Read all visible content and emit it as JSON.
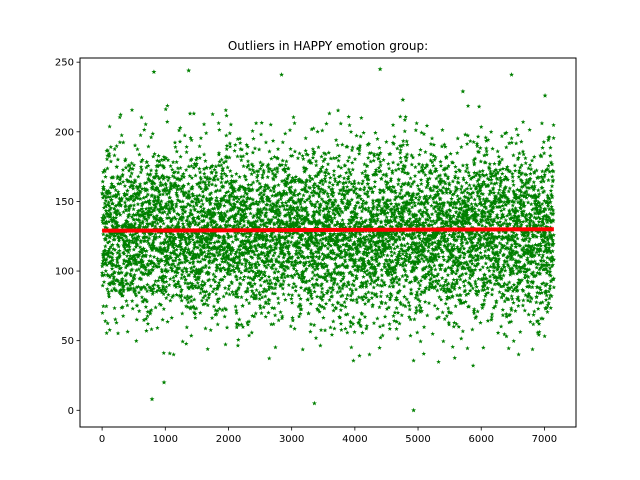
{
  "chart_data": {
    "type": "scatter",
    "title": "Outliers in HAPPY emotion group:",
    "xlabel": "",
    "ylabel": "",
    "xlim": [
      -350,
      7500
    ],
    "ylim": [
      -12,
      253
    ],
    "xticks": [
      0,
      1000,
      2000,
      3000,
      4000,
      5000,
      6000,
      7000
    ],
    "yticks": [
      0,
      50,
      100,
      150,
      200,
      250
    ],
    "xtick_labels": [
      "0",
      "1000",
      "2000",
      "3000",
      "4000",
      "5000",
      "6000",
      "7000"
    ],
    "ytick_labels": [
      "0",
      "50",
      "100",
      "150",
      "200",
      "250"
    ],
    "grid": false,
    "legend": "none",
    "colors": {
      "points": "#008000",
      "mean_line": "#ff0000"
    },
    "point_marker": "star",
    "series": [
      {
        "kind": "scatter",
        "x_range": [
          0,
          7150
        ],
        "n_points": 7150,
        "y_center": 128,
        "y_spread_sd": 30,
        "notable_points": [
          {
            "x": 790,
            "y": 8
          },
          {
            "x": 980,
            "y": 20
          },
          {
            "x": 3360,
            "y": 5
          },
          {
            "x": 4930,
            "y": 0
          },
          {
            "x": 820,
            "y": 243
          },
          {
            "x": 1370,
            "y": 244
          },
          {
            "x": 2840,
            "y": 241
          },
          {
            "x": 4400,
            "y": 245
          },
          {
            "x": 6480,
            "y": 241
          },
          {
            "x": 5710,
            "y": 229
          },
          {
            "x": 7010,
            "y": 226
          },
          {
            "x": 4760,
            "y": 223
          }
        ]
      },
      {
        "kind": "line",
        "x": [
          0,
          7150
        ],
        "y": [
          129,
          130
        ]
      }
    ]
  }
}
